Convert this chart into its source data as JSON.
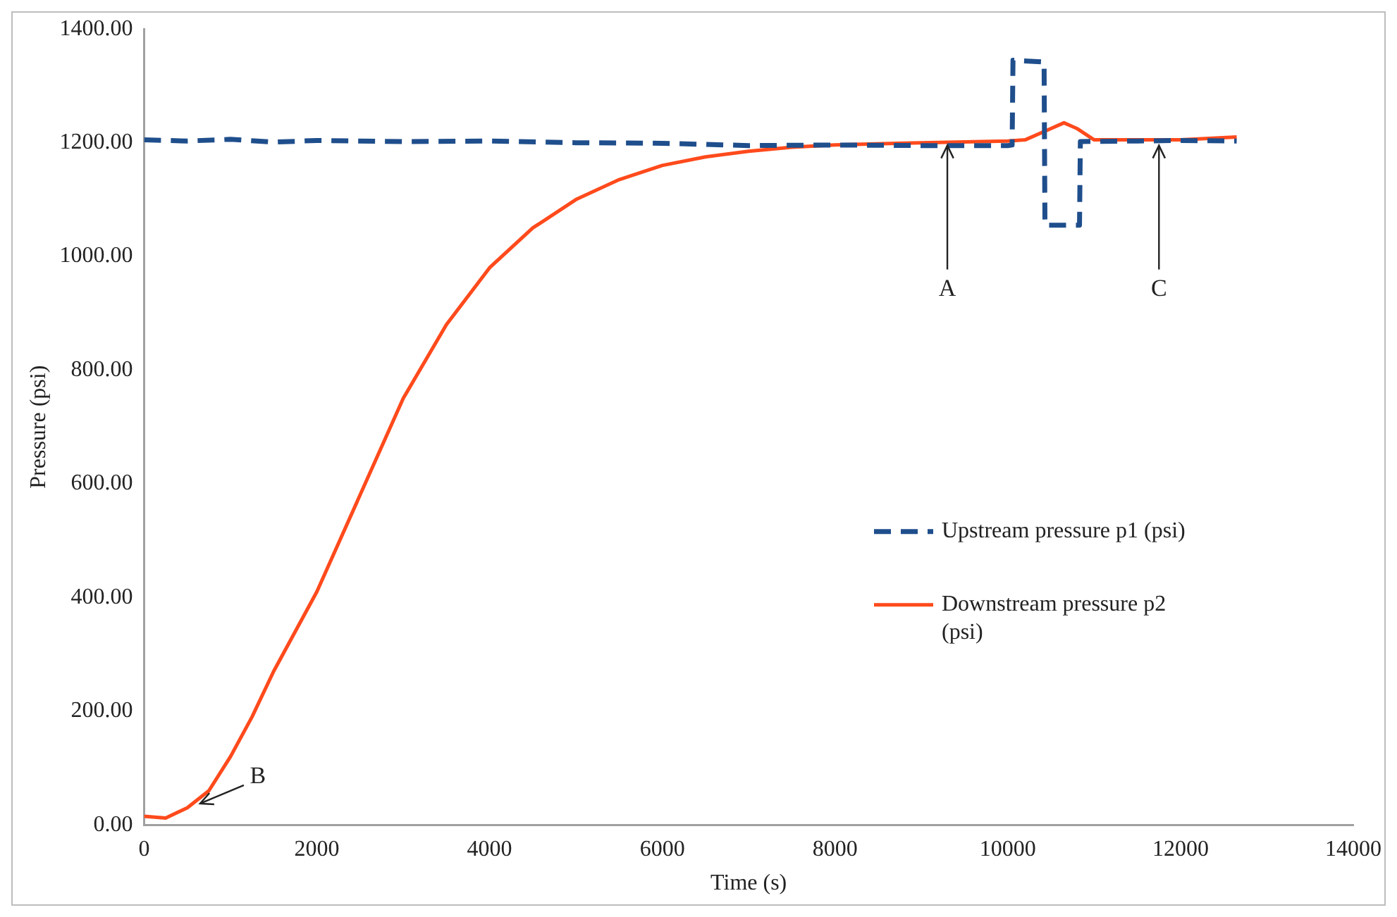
{
  "chart_data": {
    "type": "line",
    "xlabel": "Time (s)",
    "ylabel": "Pressure (psi)",
    "xlim": [
      0,
      14000
    ],
    "xticks": [
      0,
      2000,
      4000,
      6000,
      8000,
      10000,
      12000,
      14000
    ],
    "ylim": [
      0,
      1400
    ],
    "yticks": [
      {
        "value": 0,
        "label": "0.00"
      },
      {
        "value": 200,
        "label": "200.00"
      },
      {
        "value": 400,
        "label": "400.00"
      },
      {
        "value": 600,
        "label": "600.00"
      },
      {
        "value": 800,
        "label": "800.00"
      },
      {
        "value": 1000,
        "label": "1000.00"
      },
      {
        "value": 1200,
        "label": "1200.00"
      },
      {
        "value": 1400,
        "label": "1400.00"
      }
    ],
    "grid": false,
    "legend": "right",
    "marker": "none",
    "series": [
      {
        "name": "Upstream pressure p1 (psi)",
        "color": "#1f4e8c",
        "line_style": "dashed",
        "x": [
          0,
          500,
          1000,
          1500,
          2000,
          3000,
          4000,
          5000,
          6000,
          7000,
          8000,
          9000,
          10000,
          10050,
          10060,
          10420,
          10430,
          10830,
          10840,
          11500,
          12000,
          12650
        ],
        "values": [
          1205,
          1203,
          1206,
          1201,
          1204,
          1202,
          1203,
          1200,
          1199,
          1195,
          1196,
          1195,
          1195,
          1196,
          1345,
          1342,
          1055,
          1055,
          1202,
          1203,
          1204,
          1203
        ]
      },
      {
        "name": "Downstream pressure p2 (psi)",
        "color": "#ff4a1c",
        "line_style": "solid",
        "x": [
          0,
          250,
          500,
          750,
          1000,
          1250,
          1500,
          1750,
          2000,
          2500,
          3000,
          3500,
          4000,
          4500,
          5000,
          5500,
          6000,
          6500,
          7000,
          7500,
          8000,
          9000,
          10000,
          10200,
          10500,
          10650,
          10800,
          11000,
          12000,
          12650
        ],
        "values": [
          15,
          12,
          30,
          60,
          120,
          190,
          270,
          340,
          410,
          580,
          750,
          880,
          980,
          1050,
          1100,
          1135,
          1160,
          1175,
          1185,
          1192,
          1196,
          1200,
          1203,
          1205,
          1225,
          1235,
          1225,
          1205,
          1205,
          1210
        ]
      }
    ],
    "annotations": [
      {
        "text": "A",
        "x": 9300,
        "y": 1200
      },
      {
        "text": "B",
        "x": 600,
        "y": 35
      },
      {
        "text": "C",
        "x": 11750,
        "y": 1200
      }
    ]
  }
}
